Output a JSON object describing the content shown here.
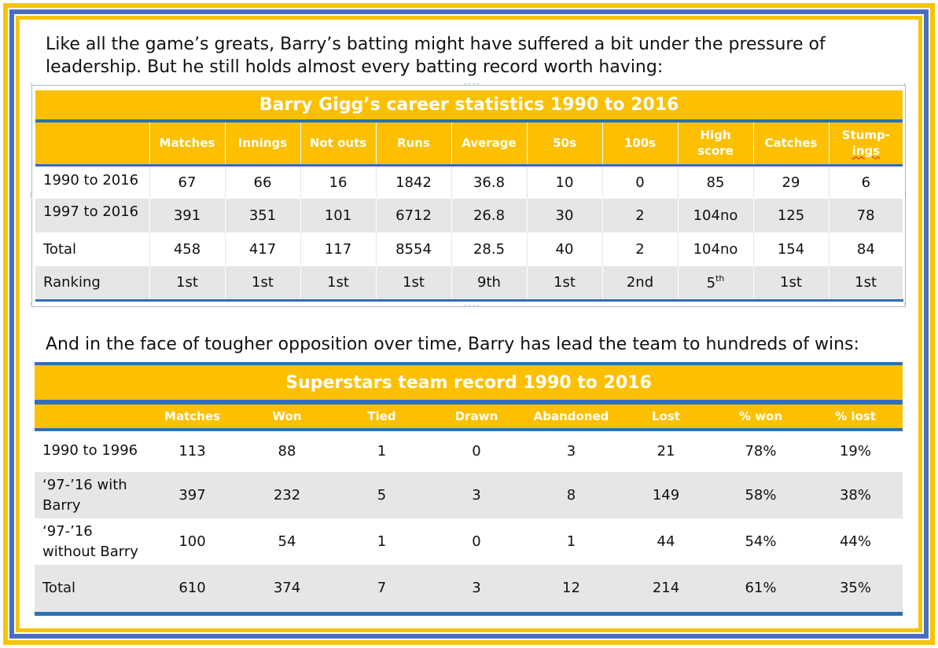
{
  "intro_text": "Like all the game’s greats, Barry’s batting might have suffered a bit under the pressure of leadership. But he still holds almost every batting record worth having:",
  "second_text": "And in the face of tougher opposition over time, Barry has lead the team to hundreds of wins:",
  "batting_table": {
    "title": "Barry Gigg’s career statistics 1990 to 2016",
    "headers": [
      "Matches",
      "Innings",
      "Not outs",
      "Runs",
      "Average",
      "50s",
      "100s",
      "High score",
      "Catches",
      "Stump-ings"
    ],
    "header_high_score_line1": "High",
    "header_high_score_line2": "score",
    "header_stumpings_line1": "Stump-",
    "header_stumpings_line2": "ings",
    "rows": [
      {
        "label": "1990 to 2016",
        "values": [
          "67",
          "66",
          "16",
          "1842",
          "36.8",
          "10",
          "0",
          "85",
          "29",
          "6"
        ]
      },
      {
        "label": "1997 to 2016",
        "values": [
          "391",
          "351",
          "101",
          "6712",
          "26.8",
          "30",
          "2",
          "104no",
          "125",
          "78"
        ]
      },
      {
        "label": "Total",
        "values": [
          "458",
          "417",
          "117",
          "8554",
          "28.5",
          "40",
          "2",
          "104no",
          "154",
          "84"
        ]
      },
      {
        "label": "Ranking",
        "values": [
          "1st",
          "1st",
          "1st",
          "1st",
          "9th",
          "1st",
          "2nd",
          "5",
          "1st",
          "1st"
        ]
      }
    ],
    "ranking_high_score_suffix": "th"
  },
  "team_table": {
    "title": "Superstars team record 1990 to 2016",
    "headers": [
      "Matches",
      "Won",
      "Tied",
      "Drawn",
      "Abandoned",
      "Lost",
      "% won",
      "% lost"
    ],
    "rows": [
      {
        "label_line1": "1990 to 1996",
        "label_line2": "",
        "values": [
          "113",
          "88",
          "1",
          "0",
          "3",
          "21",
          "78%",
          "19%"
        ]
      },
      {
        "label_line1": "‘97-’16 with",
        "label_line2": "Barry",
        "values": [
          "397",
          "232",
          "5",
          "3",
          "8",
          "149",
          "58%",
          "38%"
        ]
      },
      {
        "label_line1": "‘97-’16",
        "label_line2": "without Barry",
        "values": [
          "100",
          "54",
          "1",
          "0",
          "1",
          "44",
          "54%",
          "44%"
        ]
      },
      {
        "label_line1": "Total",
        "label_line2": "",
        "values": [
          "610",
          "374",
          "7",
          "3",
          "12",
          "214",
          "61%",
          "35%"
        ]
      }
    ]
  },
  "colors": {
    "gold": "#fcc000",
    "blue": "#2f6fb4",
    "frame_blue": "#4a6fc1",
    "frame_yellow": "#f5c400",
    "row_grey": "#e6e6e6"
  }
}
